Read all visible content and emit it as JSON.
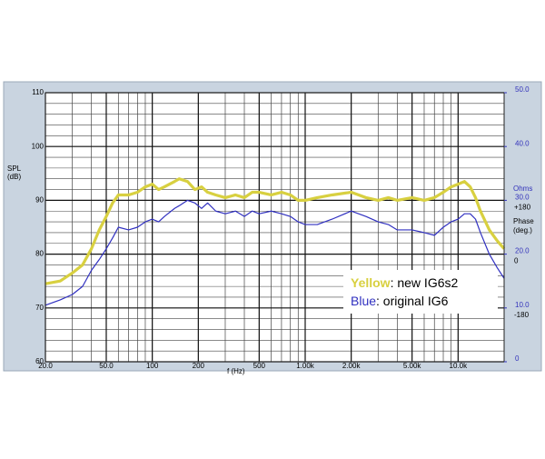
{
  "chart_data": {
    "type": "line",
    "xlabel": "f (Hz)",
    "ylabel": [
      "SPL",
      "(dB)"
    ],
    "y2label": "Ohms",
    "phase_title": [
      "Phase",
      "(deg.)"
    ],
    "phase_labels": [
      "+180",
      "0",
      "-180"
    ],
    "log_x": true,
    "grid": true,
    "xlim": [
      20,
      20000
    ],
    "xticks": [
      {
        "value": 20,
        "label": "20.0"
      },
      {
        "value": 50,
        "label": "50.0"
      },
      100,
      200,
      500,
      {
        "value": 1000,
        "label": "1.00k"
      },
      {
        "value": 2000,
        "label": "2.00k"
      },
      {
        "value": 5000,
        "label": "5.00k"
      },
      {
        "value": 10000,
        "label": "10.0k"
      }
    ],
    "ylim": [
      60,
      110
    ],
    "yticks": [
      60,
      70,
      80,
      90,
      100,
      110
    ],
    "y2lim": [
      0,
      50
    ],
    "y2ticks": [
      0,
      {
        "value": 10,
        "label": "10.0"
      },
      {
        "value": 20,
        "label": "20.0"
      },
      {
        "value": 30,
        "label": "30.0"
      },
      {
        "value": 40,
        "label": "40.0"
      },
      {
        "value": 50,
        "label": "50.0"
      }
    ],
    "x": [
      20,
      25,
      30,
      35,
      40,
      45,
      50,
      55,
      60,
      70,
      80,
      90,
      100,
      110,
      120,
      140,
      150,
      170,
      190,
      210,
      230,
      260,
      300,
      350,
      400,
      450,
      500,
      600,
      700,
      800,
      900,
      1000,
      1200,
      1500,
      2000,
      2500,
      3000,
      3500,
      4000,
      5000,
      6000,
      7000,
      8000,
      9000,
      10000,
      11000,
      12000,
      13000,
      14000,
      16000,
      18000,
      20000
    ],
    "legend": "lower right",
    "series": [
      {
        "name": ": new IG6s2",
        "legend_key": "Yellow",
        "color": "#d8d040",
        "values": [
          74.5,
          75,
          76.5,
          78,
          81,
          84.5,
          87,
          89.5,
          91,
          91,
          91.5,
          92.5,
          93,
          92,
          92.5,
          93.5,
          94,
          93.5,
          92,
          92.5,
          91.5,
          91,
          90.5,
          91,
          90.5,
          91.5,
          91.5,
          91,
          91.5,
          91,
          90,
          90,
          90.5,
          91,
          91.5,
          90.5,
          90,
          90.5,
          90,
          90.5,
          90,
          90.5,
          91.5,
          92.5,
          93,
          93.5,
          92.5,
          90.5,
          88,
          84.5,
          82.5,
          81
        ]
      },
      {
        "name": ": original IG6",
        "legend_key": "Blue",
        "color": "#3030c0",
        "values": [
          70.5,
          71.5,
          72.5,
          74,
          77,
          79,
          81,
          83,
          85,
          84.5,
          85,
          86,
          86.5,
          86,
          87,
          88.5,
          89,
          90,
          89.5,
          88.5,
          89.5,
          88,
          87.5,
          88,
          87,
          88,
          87.5,
          88,
          87.5,
          87,
          86,
          85.5,
          85.5,
          86.5,
          88,
          87,
          86,
          85.5,
          84.5,
          84.5,
          84,
          83.5,
          85,
          86,
          86.5,
          87.5,
          87.5,
          86.5,
          84,
          80,
          77.5,
          75.5
        ]
      }
    ]
  }
}
